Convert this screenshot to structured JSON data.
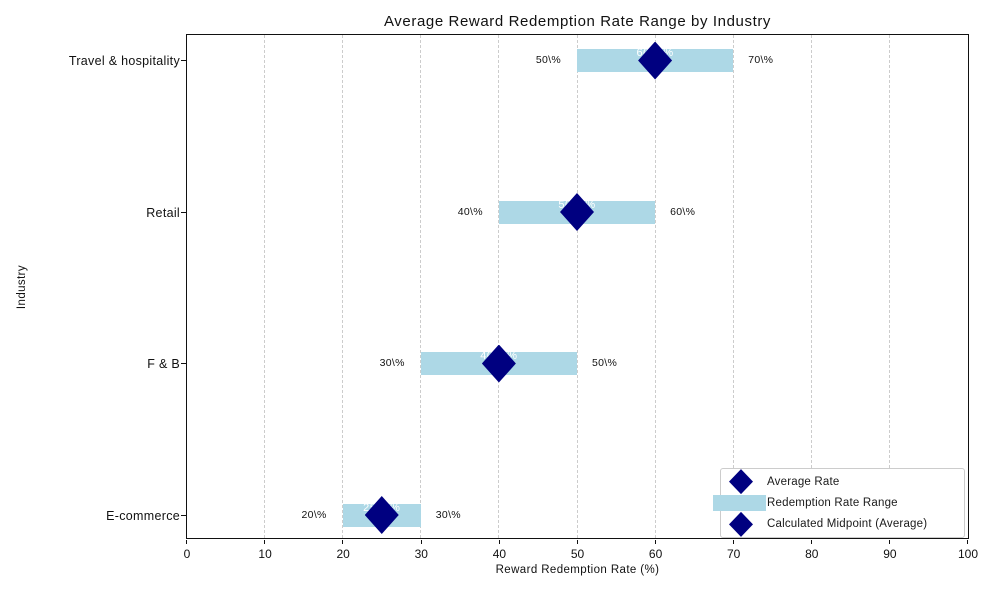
{
  "chart_data": {
    "type": "bar",
    "subtype": "horizontal-range-bar-with-midpoint-markers",
    "title": "Average Reward Redemption Rate Range by Industry",
    "xlabel": "Reward Redemption Rate (%)",
    "ylabel": "Industry",
    "xlim": [
      0,
      100
    ],
    "xticks": [
      0,
      10,
      20,
      30,
      40,
      50,
      60,
      70,
      80,
      90,
      100
    ],
    "grid": "vertical dashed gridlines at every x tick",
    "categories": [
      "Travel & hospitality",
      "Retail",
      "F & B",
      "E-commerce"
    ],
    "series": [
      {
        "category": "Travel & hospitality",
        "range_low": 50,
        "range_high": 70,
        "midpoint": 60,
        "low_label": "50\\%",
        "high_label": "70\\%",
        "midpoint_label": "60.0\\%"
      },
      {
        "category": "Retail",
        "range_low": 40,
        "range_high": 60,
        "midpoint": 50,
        "low_label": "40\\%",
        "high_label": "60\\%",
        "midpoint_label": "50.0\\%"
      },
      {
        "category": "F & B",
        "range_low": 30,
        "range_high": 50,
        "midpoint": 40,
        "low_label": "30\\%",
        "high_label": "50\\%",
        "midpoint_label": "40.0\\%"
      },
      {
        "category": "E-commerce",
        "range_low": 20,
        "range_high": 30,
        "midpoint": 25,
        "low_label": "20\\%",
        "high_label": "30\\%",
        "midpoint_label": "25.0\\%"
      }
    ],
    "colors": {
      "range_bar": "#add8e6",
      "midpoint_marker": "#000080",
      "gridline": "#cccccc",
      "text": "#111111",
      "midpoint_label_text": "#ffffff"
    },
    "legend": {
      "position": "lower right",
      "entries": [
        {
          "label": "Average Rate",
          "marker": "diamond",
          "color": "#000080"
        },
        {
          "label": "Redemption Rate Range",
          "marker": "bar",
          "color": "#add8e6"
        },
        {
          "label": "Calculated Midpoint (Average)",
          "marker": "diamond",
          "color": "#000080"
        }
      ]
    }
  }
}
